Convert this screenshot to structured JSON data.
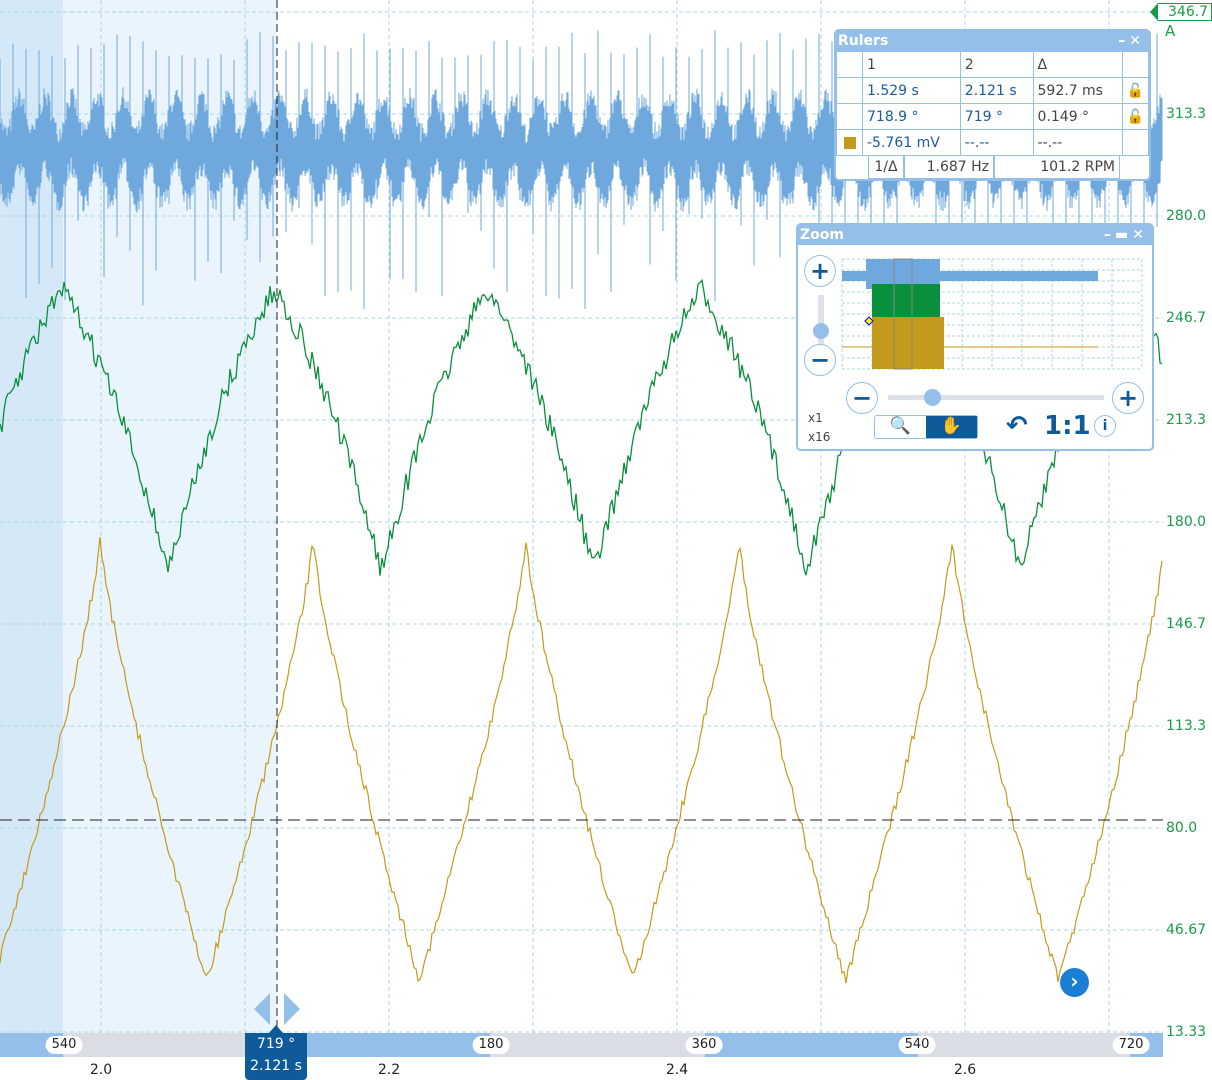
{
  "y_axis": {
    "labels": [
      "346.7",
      "313.3",
      "280.0",
      "246.7",
      "213.3",
      "180.0",
      "146.7",
      "113.3",
      "80.0",
      "46.67",
      "13.33"
    ],
    "channel": "A",
    "color": "#1a9a4a"
  },
  "x_axis": {
    "time_labels": [
      "2.0",
      "2.2",
      "2.4",
      "2.6"
    ],
    "angle_labels": [
      "540",
      "180",
      "360",
      "540",
      "720"
    ]
  },
  "cursor": {
    "angle": "719 °",
    "time": "2.121 s"
  },
  "colors": {
    "channel_blue": "#6fa8dc",
    "channel_green": "#0a8f3c",
    "channel_gold": "#c49a1c",
    "accent": "#0f5a99"
  },
  "rulers": {
    "title": "Rulers",
    "headers": [
      "1",
      "2",
      "Δ"
    ],
    "rows": [
      [
        "1.529 s",
        "2.121 s",
        "592.7 ms"
      ],
      [
        "718.9 °",
        "719 °",
        "0.149 °"
      ],
      [
        "-5.761 mV",
        "--.--",
        "--.--"
      ]
    ],
    "inverse_label": "1/Δ",
    "frequency": "1.687 Hz",
    "rpm": "101.2 RPM"
  },
  "zoom": {
    "title": "Zoom",
    "x1": "x1",
    "x16": "x16",
    "reset": "1:1"
  }
}
